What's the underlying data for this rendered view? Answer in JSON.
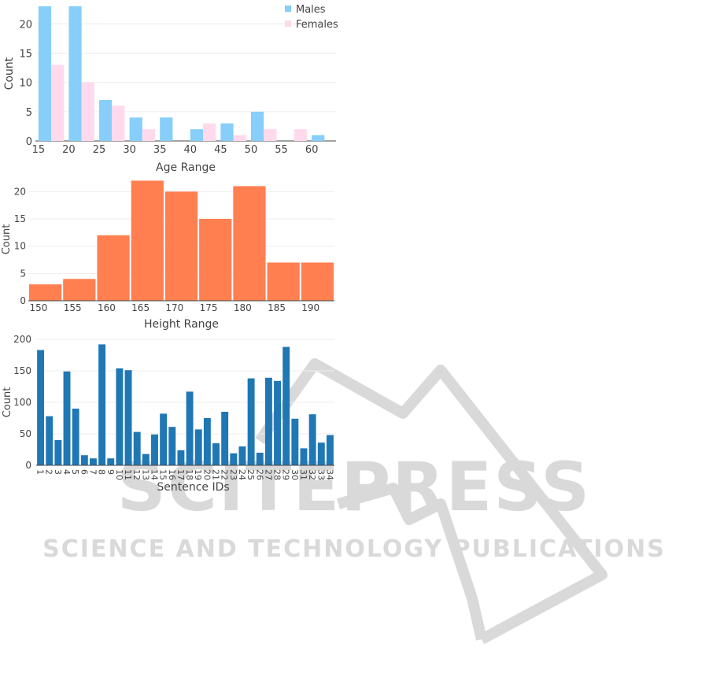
{
  "watermark": {
    "line1": "SCITEPRESS",
    "line2": "SCIENCE AND TECHNOLOGY PUBLICATIONS",
    "color": "#d9d9d9"
  },
  "chart_data": [
    {
      "type": "bar",
      "title": "",
      "xlabel": "Age Range",
      "ylabel": "Count",
      "x_ticks": [
        15,
        20,
        25,
        30,
        35,
        40,
        45,
        50,
        55,
        60
      ],
      "y_ticks": [
        0,
        5,
        10,
        15,
        20
      ],
      "xlim": [
        14.5,
        64
      ],
      "ylim": [
        0,
        23
      ],
      "bin_width": 5,
      "bin_starts": [
        15,
        20,
        25,
        30,
        35,
        40,
        45,
        50,
        55,
        60
      ],
      "grid": true,
      "legend": "top-right",
      "series": [
        {
          "name": "Males",
          "color": "#87cefa",
          "values": [
            23,
            23,
            7,
            4,
            4,
            2,
            3,
            5,
            0,
            1
          ]
        },
        {
          "name": "Females",
          "color": "#ffdaec",
          "values": [
            13,
            10,
            6,
            2,
            0,
            3,
            1,
            2,
            2,
            0
          ]
        }
      ]
    },
    {
      "type": "bar",
      "title": "",
      "xlabel": "Height Range",
      "ylabel": "Count",
      "x_ticks": [
        150,
        155,
        160,
        165,
        170,
        175,
        180,
        185,
        190
      ],
      "y_ticks": [
        0,
        5,
        10,
        15,
        20
      ],
      "xlim": [
        148.5,
        193.5
      ],
      "ylim": [
        0,
        22.5
      ],
      "bin_starts": [
        148.5,
        153.5,
        158.5,
        163.5,
        168.5,
        173.5,
        178.5,
        183.5,
        188.5
      ],
      "bin_width": 5,
      "grid": true,
      "color": "#ff7f50",
      "values": [
        3,
        4,
        12,
        22,
        20,
        15,
        21,
        7,
        7
      ]
    },
    {
      "type": "bar",
      "title": "",
      "xlabel": "Sentence IDs",
      "ylabel": "Count",
      "y_ticks": [
        0,
        50,
        100,
        150,
        200
      ],
      "ylim": [
        0,
        200
      ],
      "grid": true,
      "color": "#1f77b4",
      "categories": [
        "1",
        "2",
        "3",
        "4",
        "5",
        "6",
        "7",
        "8",
        "9",
        "10",
        "11",
        "12",
        "13",
        "14",
        "15",
        "16",
        "17",
        "18",
        "19",
        "20",
        "21",
        "22",
        "23",
        "24",
        "25",
        "26",
        "27",
        "28",
        "29",
        "30",
        "31",
        "32",
        "33",
        "34"
      ],
      "values": [
        183,
        78,
        40,
        149,
        90,
        16,
        11,
        192,
        11,
        154,
        151,
        53,
        18,
        49,
        82,
        61,
        24,
        117,
        57,
        75,
        35,
        85,
        19,
        30,
        138,
        20,
        139,
        134,
        188,
        74,
        27,
        81,
        36,
        48
      ]
    }
  ]
}
